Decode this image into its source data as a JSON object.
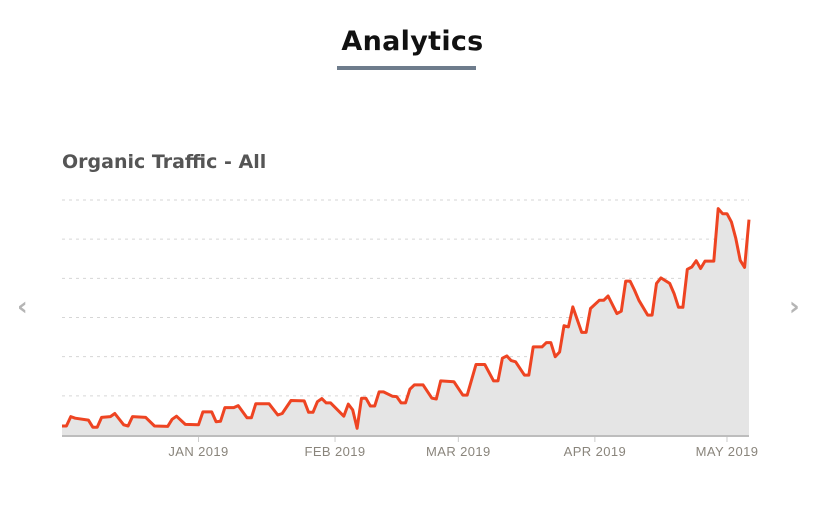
{
  "header": {
    "title": "Analytics"
  },
  "nav": {
    "prev_icon": "chevron-left-icon",
    "next_icon": "chevron-right-icon",
    "prev": "‹",
    "next": "›"
  },
  "colors": {
    "line": "#ee4422",
    "fill": "#e5e5e5",
    "grid": "#d6d6d6",
    "underline": "#6e7c8c"
  },
  "chart_data": {
    "type": "area",
    "title": "Organic Traffic - All",
    "xlabel": "",
    "ylabel": "",
    "xlim": [
      "2018-12-01",
      "2019-05-06"
    ],
    "ylim": [
      0,
      6
    ],
    "y_tick_labels_shown": false,
    "grid": true,
    "x_ticks": [
      {
        "date": "2019-01-01",
        "label": "JAN 2019"
      },
      {
        "date": "2019-02-01",
        "label": "FEB 2019"
      },
      {
        "date": "2019-03-01",
        "label": "MAR 2019"
      },
      {
        "date": "2019-04-01",
        "label": "APR 2019"
      },
      {
        "date": "2019-05-01",
        "label": "MAY 2019"
      }
    ],
    "series": [
      {
        "points": [
          [
            "2018-12-01",
            0.23
          ],
          [
            "2018-12-02",
            0.23
          ],
          [
            "2018-12-03",
            0.47
          ],
          [
            "2018-12-04",
            0.43
          ],
          [
            "2018-12-07",
            0.38
          ],
          [
            "2018-12-08",
            0.2
          ],
          [
            "2018-12-09",
            0.2
          ],
          [
            "2018-12-10",
            0.45
          ],
          [
            "2018-12-12",
            0.47
          ],
          [
            "2018-12-13",
            0.55
          ],
          [
            "2018-12-15",
            0.26
          ],
          [
            "2018-12-16",
            0.23
          ],
          [
            "2018-12-17",
            0.47
          ],
          [
            "2018-12-20",
            0.45
          ],
          [
            "2018-12-22",
            0.23
          ],
          [
            "2018-12-25",
            0.22
          ],
          [
            "2018-12-26",
            0.4
          ],
          [
            "2018-12-27",
            0.48
          ],
          [
            "2018-12-29",
            0.27
          ],
          [
            "2019-01-01",
            0.26
          ],
          [
            "2019-01-02",
            0.59
          ],
          [
            "2019-01-04",
            0.59
          ],
          [
            "2019-01-05",
            0.34
          ],
          [
            "2019-01-06",
            0.35
          ],
          [
            "2019-01-07",
            0.7
          ],
          [
            "2019-01-09",
            0.7
          ],
          [
            "2019-01-10",
            0.75
          ],
          [
            "2019-01-12",
            0.44
          ],
          [
            "2019-01-13",
            0.44
          ],
          [
            "2019-01-14",
            0.8
          ],
          [
            "2019-01-17",
            0.8
          ],
          [
            "2019-01-19",
            0.51
          ],
          [
            "2019-01-20",
            0.55
          ],
          [
            "2019-01-22",
            0.88
          ],
          [
            "2019-01-25",
            0.87
          ],
          [
            "2019-01-26",
            0.58
          ],
          [
            "2019-01-27",
            0.58
          ],
          [
            "2019-01-28",
            0.85
          ],
          [
            "2019-01-29",
            0.93
          ],
          [
            "2019-01-30",
            0.82
          ],
          [
            "2019-01-31",
            0.82
          ],
          [
            "2019-02-03",
            0.48
          ],
          [
            "2019-02-04",
            0.79
          ],
          [
            "2019-02-05",
            0.64
          ],
          [
            "2019-02-06",
            0.17
          ],
          [
            "2019-02-07",
            0.94
          ],
          [
            "2019-02-08",
            0.94
          ],
          [
            "2019-02-09",
            0.74
          ],
          [
            "2019-02-10",
            0.74
          ],
          [
            "2019-02-11",
            1.1
          ],
          [
            "2019-02-12",
            1.1
          ],
          [
            "2019-02-14",
            0.99
          ],
          [
            "2019-02-15",
            0.98
          ],
          [
            "2019-02-16",
            0.82
          ],
          [
            "2019-02-17",
            0.82
          ],
          [
            "2019-02-18",
            1.17
          ],
          [
            "2019-02-19",
            1.28
          ],
          [
            "2019-02-21",
            1.28
          ],
          [
            "2019-02-23",
            0.94
          ],
          [
            "2019-02-24",
            0.92
          ],
          [
            "2019-02-25",
            1.38
          ],
          [
            "2019-02-28",
            1.36
          ],
          [
            "2019-03-02",
            1.02
          ],
          [
            "2019-03-03",
            1.02
          ],
          [
            "2019-03-05",
            1.8
          ],
          [
            "2019-03-07",
            1.8
          ],
          [
            "2019-03-09",
            1.38
          ],
          [
            "2019-03-10",
            1.38
          ],
          [
            "2019-03-11",
            1.96
          ],
          [
            "2019-03-12",
            2.02
          ],
          [
            "2019-03-13",
            1.9
          ],
          [
            "2019-03-14",
            1.87
          ],
          [
            "2019-03-16",
            1.53
          ],
          [
            "2019-03-17",
            1.53
          ],
          [
            "2019-03-18",
            2.25
          ],
          [
            "2019-03-20",
            2.25
          ],
          [
            "2019-03-21",
            2.36
          ],
          [
            "2019-03-22",
            2.36
          ],
          [
            "2019-03-23",
            2.0
          ],
          [
            "2019-03-24",
            2.12
          ],
          [
            "2019-03-25",
            2.79
          ],
          [
            "2019-03-26",
            2.76
          ],
          [
            "2019-03-27",
            3.27
          ],
          [
            "2019-03-29",
            2.62
          ],
          [
            "2019-03-30",
            2.62
          ],
          [
            "2019-03-31",
            3.23
          ],
          [
            "2019-04-02",
            3.44
          ],
          [
            "2019-04-03",
            3.44
          ],
          [
            "2019-04-04",
            3.55
          ],
          [
            "2019-04-06",
            3.1
          ],
          [
            "2019-04-07",
            3.16
          ],
          [
            "2019-04-08",
            3.93
          ],
          [
            "2019-04-09",
            3.93
          ],
          [
            "2019-04-10",
            3.7
          ],
          [
            "2019-04-11",
            3.44
          ],
          [
            "2019-04-13",
            3.06
          ],
          [
            "2019-04-14",
            3.06
          ],
          [
            "2019-04-15",
            3.87
          ],
          [
            "2019-04-16",
            4.01
          ],
          [
            "2019-04-18",
            3.87
          ],
          [
            "2019-04-19",
            3.61
          ],
          [
            "2019-04-20",
            3.26
          ],
          [
            "2019-04-21",
            3.26
          ],
          [
            "2019-04-22",
            4.23
          ],
          [
            "2019-04-23",
            4.29
          ],
          [
            "2019-04-24",
            4.45
          ],
          [
            "2019-04-25",
            4.25
          ],
          [
            "2019-04-26",
            4.44
          ],
          [
            "2019-04-28",
            4.44
          ],
          [
            "2019-04-29",
            5.78
          ],
          [
            "2019-04-30",
            5.65
          ],
          [
            "2019-05-01",
            5.65
          ],
          [
            "2019-05-02",
            5.44
          ],
          [
            "2019-05-03",
            5.02
          ],
          [
            "2019-05-04",
            4.46
          ],
          [
            "2019-05-05",
            4.28
          ],
          [
            "2019-05-06",
            5.5
          ]
        ]
      }
    ]
  }
}
